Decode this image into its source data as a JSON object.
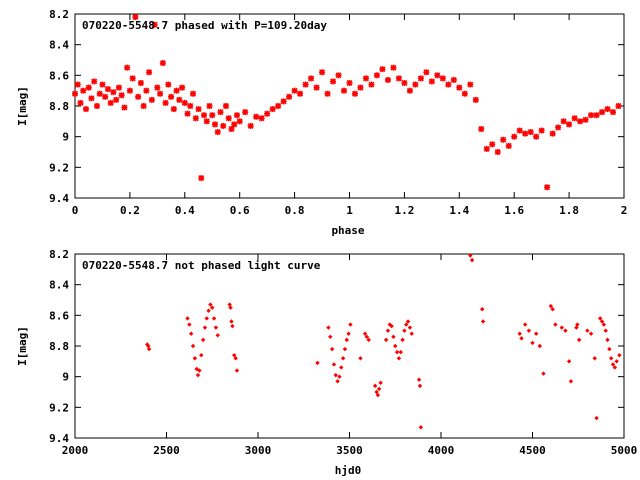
{
  "chart_data": [
    {
      "type": "scatter",
      "title": "070220-5548.7 phased with P=109.20day",
      "xlabel": "phase",
      "ylabel": "I[mag]",
      "xlim": [
        0,
        2
      ],
      "ylim": [
        8.2,
        9.4
      ],
      "y_inverted": true,
      "x_ticks": [
        "0",
        "0.2",
        "0.4",
        "0.6",
        "0.8",
        "1",
        "1.2",
        "1.4",
        "1.6",
        "1.8",
        "2"
      ],
      "y_ticks": [
        "8.2",
        "8.4",
        "8.6",
        "8.8",
        "9",
        "9.2",
        "9.4"
      ],
      "marker": "star",
      "color": "#ff0000",
      "points": [
        [
          0.0,
          8.72
        ],
        [
          0.01,
          8.66
        ],
        [
          0.02,
          8.78
        ],
        [
          0.03,
          8.7
        ],
        [
          0.04,
          8.82
        ],
        [
          0.05,
          8.68
        ],
        [
          0.06,
          8.75
        ],
        [
          0.07,
          8.64
        ],
        [
          0.08,
          8.8
        ],
        [
          0.09,
          8.72
        ],
        [
          0.1,
          8.66
        ],
        [
          0.11,
          8.74
        ],
        [
          0.12,
          8.69
        ],
        [
          0.13,
          8.78
        ],
        [
          0.14,
          8.71
        ],
        [
          0.15,
          8.76
        ],
        [
          0.16,
          8.68
        ],
        [
          0.17,
          8.73
        ],
        [
          0.18,
          8.81
        ],
        [
          0.19,
          8.55
        ],
        [
          0.2,
          8.7
        ],
        [
          0.21,
          8.62
        ],
        [
          0.22,
          8.22
        ],
        [
          0.23,
          8.74
        ],
        [
          0.24,
          8.65
        ],
        [
          0.25,
          8.8
        ],
        [
          0.26,
          8.7
        ],
        [
          0.27,
          8.58
        ],
        [
          0.28,
          8.76
        ],
        [
          0.29,
          8.27
        ],
        [
          0.3,
          8.68
        ],
        [
          0.31,
          8.72
        ],
        [
          0.32,
          8.52
        ],
        [
          0.33,
          8.78
        ],
        [
          0.34,
          8.66
        ],
        [
          0.35,
          8.74
        ],
        [
          0.36,
          8.82
        ],
        [
          0.37,
          8.7
        ],
        [
          0.38,
          8.76
        ],
        [
          0.39,
          8.68
        ],
        [
          0.4,
          8.78
        ],
        [
          0.41,
          8.85
        ],
        [
          0.42,
          8.8
        ],
        [
          0.43,
          8.72
        ],
        [
          0.44,
          8.88
        ],
        [
          0.45,
          8.82
        ],
        [
          0.46,
          9.27
        ],
        [
          0.47,
          8.86
        ],
        [
          0.48,
          8.9
        ],
        [
          0.49,
          8.8
        ],
        [
          0.5,
          8.86
        ],
        [
          0.51,
          8.92
        ],
        [
          0.52,
          8.97
        ],
        [
          0.53,
          8.84
        ],
        [
          0.54,
          8.93
        ],
        [
          0.55,
          8.8
        ],
        [
          0.56,
          8.88
        ],
        [
          0.57,
          8.95
        ],
        [
          0.58,
          8.92
        ],
        [
          0.59,
          8.86
        ],
        [
          0.6,
          8.9
        ],
        [
          0.62,
          8.84
        ],
        [
          0.64,
          8.93
        ],
        [
          0.66,
          8.87
        ],
        [
          0.68,
          8.88
        ],
        [
          0.7,
          8.85
        ],
        [
          0.72,
          8.82
        ],
        [
          0.74,
          8.8
        ],
        [
          0.76,
          8.77
        ],
        [
          0.78,
          8.74
        ],
        [
          0.8,
          8.7
        ],
        [
          0.82,
          8.72
        ],
        [
          0.84,
          8.66
        ],
        [
          0.86,
          8.62
        ],
        [
          0.88,
          8.68
        ],
        [
          0.9,
          8.58
        ],
        [
          0.92,
          8.72
        ],
        [
          0.94,
          8.64
        ],
        [
          0.96,
          8.6
        ],
        [
          0.98,
          8.7
        ],
        [
          1.0,
          8.65
        ],
        [
          1.02,
          8.72
        ],
        [
          1.04,
          8.68
        ],
        [
          1.06,
          8.62
        ],
        [
          1.08,
          8.66
        ],
        [
          1.1,
          8.6
        ],
        [
          1.12,
          8.56
        ],
        [
          1.14,
          8.63
        ],
        [
          1.16,
          8.55
        ],
        [
          1.18,
          8.62
        ],
        [
          1.2,
          8.65
        ],
        [
          1.22,
          8.7
        ],
        [
          1.24,
          8.66
        ],
        [
          1.26,
          8.62
        ],
        [
          1.28,
          8.58
        ],
        [
          1.3,
          8.64
        ],
        [
          1.32,
          8.6
        ],
        [
          1.34,
          8.62
        ],
        [
          1.36,
          8.66
        ],
        [
          1.38,
          8.63
        ],
        [
          1.4,
          8.68
        ],
        [
          1.42,
          8.72
        ],
        [
          1.44,
          8.66
        ],
        [
          1.46,
          8.76
        ],
        [
          1.48,
          8.95
        ],
        [
          1.5,
          9.08
        ],
        [
          1.52,
          9.05
        ],
        [
          1.54,
          9.1
        ],
        [
          1.56,
          9.02
        ],
        [
          1.58,
          9.06
        ],
        [
          1.6,
          9.0
        ],
        [
          1.62,
          8.96
        ],
        [
          1.64,
          8.98
        ],
        [
          1.66,
          8.97
        ],
        [
          1.68,
          9.0
        ],
        [
          1.7,
          8.96
        ],
        [
          1.72,
          9.33
        ],
        [
          1.74,
          8.98
        ],
        [
          1.76,
          8.94
        ],
        [
          1.78,
          8.9
        ],
        [
          1.8,
          8.92
        ],
        [
          1.82,
          8.88
        ],
        [
          1.84,
          8.9
        ],
        [
          1.86,
          8.89
        ],
        [
          1.88,
          8.86
        ],
        [
          1.9,
          8.86
        ],
        [
          1.92,
          8.84
        ],
        [
          1.94,
          8.82
        ],
        [
          1.96,
          8.84
        ],
        [
          1.98,
          8.8
        ]
      ]
    },
    {
      "type": "scatter",
      "title": "070220-5548.7 not phased light curve",
      "xlabel": "hjd0",
      "ylabel": "I[mag]",
      "xlim": [
        2000,
        5000
      ],
      "ylim": [
        8.2,
        9.4
      ],
      "y_inverted": true,
      "x_ticks": [
        "2000",
        "2500",
        "3000",
        "3500",
        "4000",
        "4500",
        "5000"
      ],
      "y_ticks": [
        "8.2",
        "8.4",
        "8.6",
        "8.8",
        "9",
        "9.2",
        "9.4"
      ],
      "marker": "diamond",
      "color": "#ff0000",
      "points": [
        [
          2395,
          8.79
        ],
        [
          2400,
          8.8
        ],
        [
          2405,
          8.82
        ],
        [
          2615,
          8.62
        ],
        [
          2625,
          8.66
        ],
        [
          2635,
          8.72
        ],
        [
          2645,
          8.8
        ],
        [
          2655,
          8.88
        ],
        [
          2665,
          8.95
        ],
        [
          2672,
          8.99
        ],
        [
          2680,
          8.96
        ],
        [
          2690,
          8.86
        ],
        [
          2700,
          8.76
        ],
        [
          2710,
          8.68
        ],
        [
          2720,
          8.62
        ],
        [
          2730,
          8.57
        ],
        [
          2740,
          8.53
        ],
        [
          2750,
          8.55
        ],
        [
          2760,
          8.62
        ],
        [
          2770,
          8.68
        ],
        [
          2780,
          8.73
        ],
        [
          2845,
          8.53
        ],
        [
          2850,
          8.55
        ],
        [
          2855,
          8.64
        ],
        [
          2860,
          8.67
        ],
        [
          2870,
          8.86
        ],
        [
          2878,
          8.88
        ],
        [
          2885,
          8.96
        ],
        [
          3325,
          8.91
        ],
        [
          3385,
          8.68
        ],
        [
          3395,
          8.74
        ],
        [
          3405,
          8.82
        ],
        [
          3415,
          8.92
        ],
        [
          3425,
          8.99
        ],
        [
          3435,
          9.03
        ],
        [
          3445,
          9.0
        ],
        [
          3455,
          8.94
        ],
        [
          3465,
          8.88
        ],
        [
          3475,
          8.82
        ],
        [
          3485,
          8.76
        ],
        [
          3495,
          8.72
        ],
        [
          3505,
          8.66
        ],
        [
          3560,
          8.88
        ],
        [
          3585,
          8.72
        ],
        [
          3595,
          8.74
        ],
        [
          3605,
          8.76
        ],
        [
          3640,
          9.06
        ],
        [
          3648,
          9.1
        ],
        [
          3655,
          9.12
        ],
        [
          3662,
          9.08
        ],
        [
          3670,
          9.04
        ],
        [
          3700,
          8.76
        ],
        [
          3710,
          8.7
        ],
        [
          3720,
          8.66
        ],
        [
          3730,
          8.67
        ],
        [
          3740,
          8.74
        ],
        [
          3750,
          8.8
        ],
        [
          3760,
          8.84
        ],
        [
          3770,
          8.88
        ],
        [
          3780,
          8.84
        ],
        [
          3790,
          8.76
        ],
        [
          3800,
          8.7
        ],
        [
          3810,
          8.66
        ],
        [
          3820,
          8.64
        ],
        [
          3830,
          8.68
        ],
        [
          3840,
          8.72
        ],
        [
          3880,
          9.02
        ],
        [
          3885,
          9.06
        ],
        [
          3890,
          9.33
        ],
        [
          4160,
          8.21
        ],
        [
          4170,
          8.24
        ],
        [
          4225,
          8.56
        ],
        [
          4230,
          8.64
        ],
        [
          4430,
          8.72
        ],
        [
          4440,
          8.75
        ],
        [
          4460,
          8.66
        ],
        [
          4480,
          8.7
        ],
        [
          4500,
          8.78
        ],
        [
          4520,
          8.72
        ],
        [
          4540,
          8.8
        ],
        [
          4560,
          8.98
        ],
        [
          4600,
          8.54
        ],
        [
          4610,
          8.56
        ],
        [
          4625,
          8.66
        ],
        [
          4660,
          8.68
        ],
        [
          4680,
          8.7
        ],
        [
          4700,
          8.9
        ],
        [
          4710,
          9.03
        ],
        [
          4740,
          8.68
        ],
        [
          4745,
          8.66
        ],
        [
          4755,
          8.76
        ],
        [
          4800,
          8.7
        ],
        [
          4820,
          8.72
        ],
        [
          4840,
          8.88
        ],
        [
          4850,
          9.27
        ],
        [
          4870,
          8.62
        ],
        [
          4880,
          8.64
        ],
        [
          4890,
          8.66
        ],
        [
          4900,
          8.7
        ],
        [
          4910,
          8.76
        ],
        [
          4920,
          8.82
        ],
        [
          4930,
          8.88
        ],
        [
          4940,
          8.92
        ],
        [
          4950,
          8.94
        ],
        [
          4960,
          8.9
        ],
        [
          4975,
          8.86
        ]
      ]
    }
  ]
}
